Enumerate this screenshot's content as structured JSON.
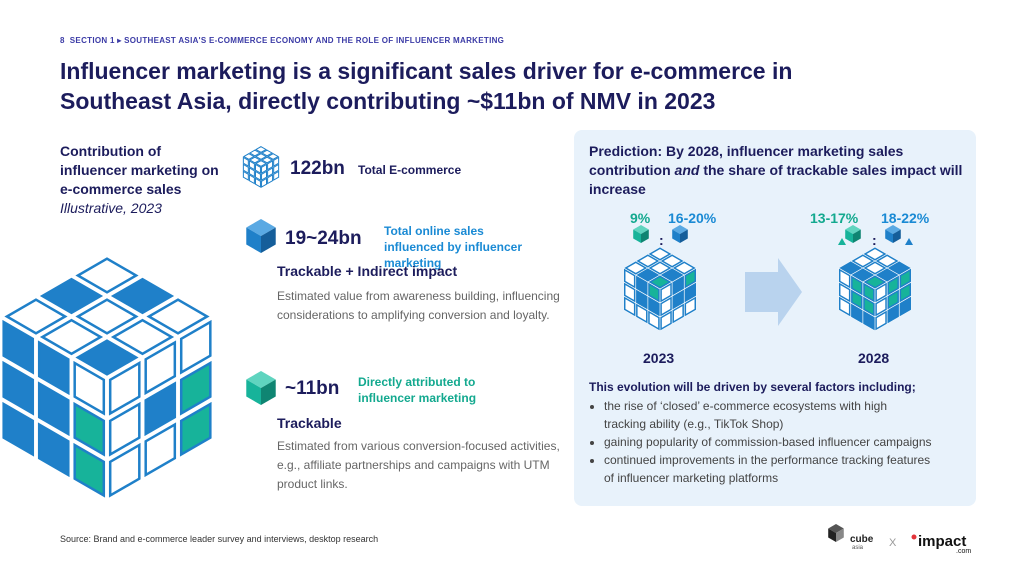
{
  "header": {
    "page_number": "8",
    "section": "SECTION 1 ▸ SOUTHEAST ASIA'S E-COMMERCE ECONOMY AND THE ROLE OF INFLUENCER MARKETING",
    "title": "Influencer marketing is a significant sales driver for e-commerce in Southeast Asia, directly contributing ~$11bn of NMV in 2023"
  },
  "left": {
    "heading": "Contribution of influencer marketing on e-commerce sales",
    "subheading": "Illustrative, 2023"
  },
  "items": [
    {
      "value": "122bn",
      "label": "Total E-commerce"
    },
    {
      "value": "19~24bn",
      "label": "Total online sales influenced by influencer marketing",
      "title": "Trackable + Indirect impact",
      "description": "Estimated value from awareness building, influencing considerations to amplifying conversion and loyalty."
    },
    {
      "value": "~11bn",
      "label": "Directly attributed to influencer marketing",
      "title": "Trackable",
      "description": "Estimated from various conversion-focused activities, e.g., affiliate partnerships and campaigns with UTM product links."
    }
  ],
  "prediction": {
    "title_parts": [
      "Prediction: By 2028, influencer marketing sales contribution ",
      "and",
      " the share of trackable sales impact will increase"
    ],
    "separator": ":",
    "years": [
      {
        "label": "2023",
        "trackable": "9%",
        "indirect": "16-20%"
      },
      {
        "label": "2028",
        "trackable": "13-17%",
        "indirect": "18-22%"
      }
    ],
    "drivers_intro": "This evolution will be driven by several factors including;",
    "drivers": [
      "the rise of ‘closed’ e-commerce ecosystems with high tracking ability (e.g., TikTok Shop)",
      "gaining popularity of commission-based influencer campaigns",
      "continued improvements in the performance tracking features of influencer marketing platforms"
    ]
  },
  "source": "Source: Brand and e-commerce leader survey and interviews, desktop research",
  "logos": {
    "cube": "cube",
    "cube_sub": "asia",
    "separator": "X",
    "impact": "impact",
    "impact_sub": ".com"
  }
}
